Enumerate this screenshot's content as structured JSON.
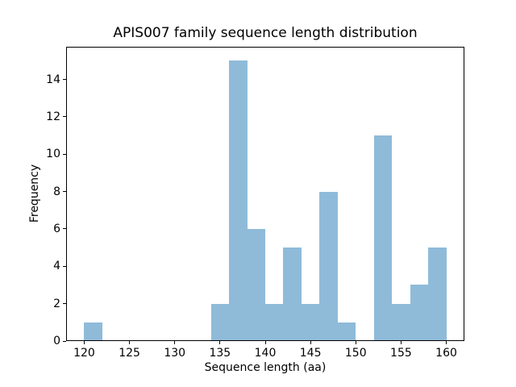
{
  "figure": {
    "background": "#ffffff",
    "axis_color": "#000000",
    "text_color": "#000000"
  },
  "chart_data": {
    "type": "bar",
    "subtype": "histogram",
    "title": "APIS007 family sequence length distribution",
    "xlabel": "Sequence length (aa)",
    "ylabel": "Frequency",
    "bar_color": "#8fbbd9",
    "bin_edges": [
      120,
      122,
      124,
      126,
      128,
      130,
      132,
      134,
      136,
      138,
      140,
      142,
      144,
      146,
      148,
      150,
      152,
      154,
      156,
      158,
      160
    ],
    "counts": [
      1,
      0,
      0,
      0,
      0,
      0,
      0,
      2,
      15,
      6,
      2,
      5,
      2,
      8,
      1,
      0,
      11,
      2,
      3,
      5
    ],
    "xlim": [
      118,
      162
    ],
    "ylim": [
      0,
      15.75
    ],
    "xticks": [
      120,
      125,
      130,
      135,
      140,
      145,
      150,
      155,
      160
    ],
    "yticks": [
      0,
      2,
      4,
      6,
      8,
      10,
      12,
      14
    ],
    "grid": false,
    "legend_position": "none"
  }
}
